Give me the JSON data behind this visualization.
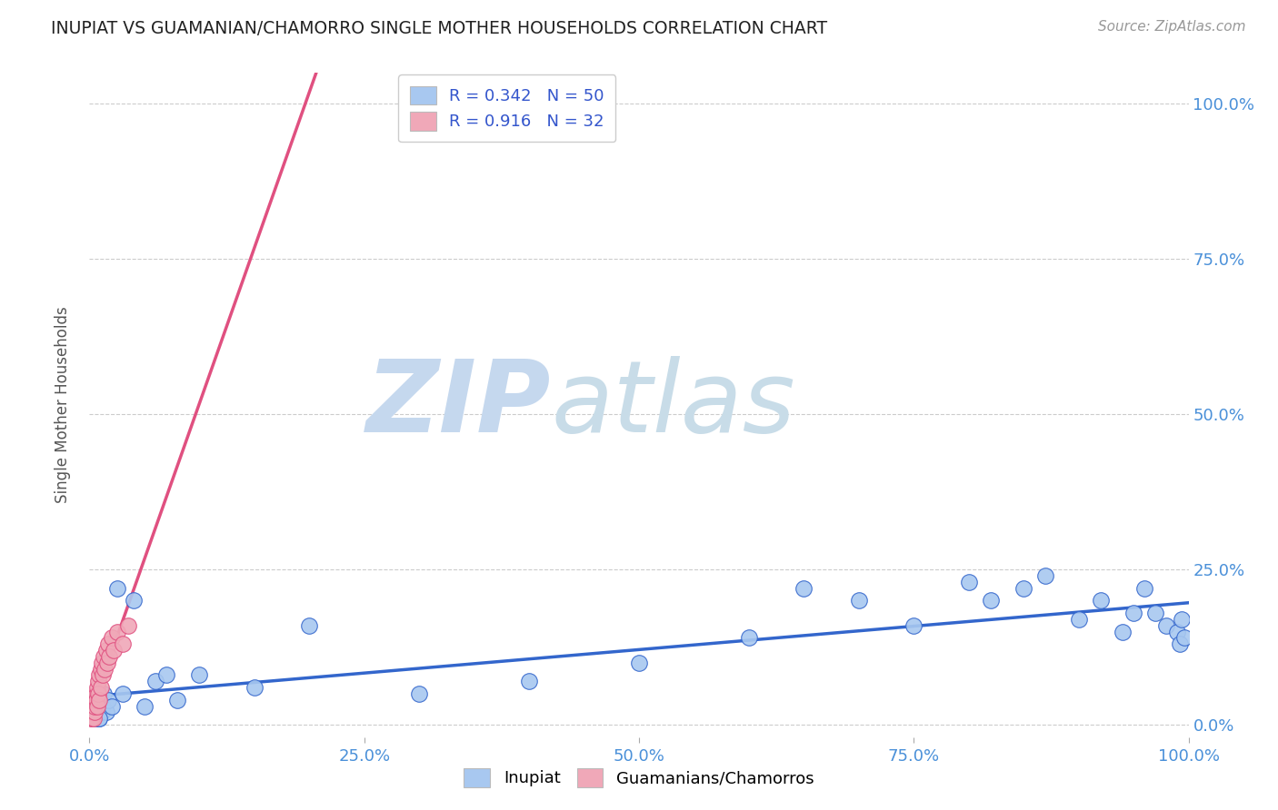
{
  "title": "INUPIAT VS GUAMANIAN/CHAMORRO SINGLE MOTHER HOUSEHOLDS CORRELATION CHART",
  "source": "Source: ZipAtlas.com",
  "ylabel": "Single Mother Households",
  "xlabel": "",
  "r_inupiat": 0.342,
  "n_inupiat": 50,
  "r_chamorro": 0.916,
  "n_chamorro": 32,
  "color_inupiat": "#a8c8f0",
  "color_chamorro": "#f0a8b8",
  "color_inupiat_line": "#3366cc",
  "color_chamorro_line": "#e05080",
  "color_title": "#222222",
  "color_source": "#999999",
  "color_axis_labels": "#4a90d9",
  "color_watermark": "#d0e4f5",
  "watermark_zip": "ZIP",
  "watermark_atlas": "atlas",
  "inupiat_x": [
    0.002,
    0.003,
    0.004,
    0.005,
    0.006,
    0.007,
    0.008,
    0.009,
    0.01,
    0.011,
    0.012,
    0.013,
    0.015,
    0.017,
    0.02,
    0.025,
    0.03,
    0.04,
    0.05,
    0.06,
    0.08,
    0.1,
    0.15,
    0.2,
    0.3,
    0.4,
    0.5,
    0.6,
    0.65,
    0.7,
    0.75,
    0.8,
    0.82,
    0.85,
    0.87,
    0.9,
    0.92,
    0.94,
    0.95,
    0.96,
    0.97,
    0.98,
    0.99,
    0.992,
    0.994,
    0.996,
    0.003,
    0.006,
    0.009,
    0.07
  ],
  "inupiat_y": [
    0.02,
    0.01,
    0.03,
    0.02,
    0.01,
    0.02,
    0.03,
    0.01,
    0.04,
    0.02,
    0.03,
    0.05,
    0.02,
    0.04,
    0.03,
    0.22,
    0.05,
    0.2,
    0.03,
    0.07,
    0.04,
    0.08,
    0.06,
    0.16,
    0.05,
    0.07,
    0.1,
    0.14,
    0.22,
    0.2,
    0.16,
    0.23,
    0.2,
    0.22,
    0.24,
    0.17,
    0.2,
    0.15,
    0.18,
    0.22,
    0.18,
    0.16,
    0.15,
    0.13,
    0.17,
    0.14,
    0.02,
    0.03,
    0.01,
    0.08
  ],
  "chamorro_x": [
    0.001,
    0.002,
    0.002,
    0.003,
    0.003,
    0.004,
    0.004,
    0.005,
    0.005,
    0.006,
    0.006,
    0.007,
    0.007,
    0.008,
    0.008,
    0.009,
    0.009,
    0.01,
    0.01,
    0.011,
    0.012,
    0.013,
    0.014,
    0.015,
    0.016,
    0.017,
    0.018,
    0.02,
    0.022,
    0.025,
    0.03,
    0.035
  ],
  "chamorro_y": [
    0.01,
    0.02,
    0.01,
    0.03,
    0.02,
    0.01,
    0.04,
    0.02,
    0.03,
    0.05,
    0.04,
    0.06,
    0.03,
    0.07,
    0.05,
    0.08,
    0.04,
    0.09,
    0.06,
    0.1,
    0.08,
    0.11,
    0.09,
    0.12,
    0.1,
    0.13,
    0.11,
    0.14,
    0.12,
    0.15,
    0.13,
    0.16
  ],
  "xlim": [
    0.0,
    1.0
  ],
  "ylim": [
    -0.02,
    1.05
  ],
  "xticks": [
    0.0,
    0.25,
    0.5,
    0.75,
    1.0
  ],
  "yticks": [
    0.0,
    0.25,
    0.5,
    0.75,
    1.0
  ],
  "xtick_labels": [
    "0.0%",
    "25.0%",
    "50.0%",
    "75.0%",
    "100.0%"
  ],
  "ytick_labels": [
    "0.0%",
    "25.0%",
    "50.0%",
    "75.0%",
    "100.0%"
  ]
}
